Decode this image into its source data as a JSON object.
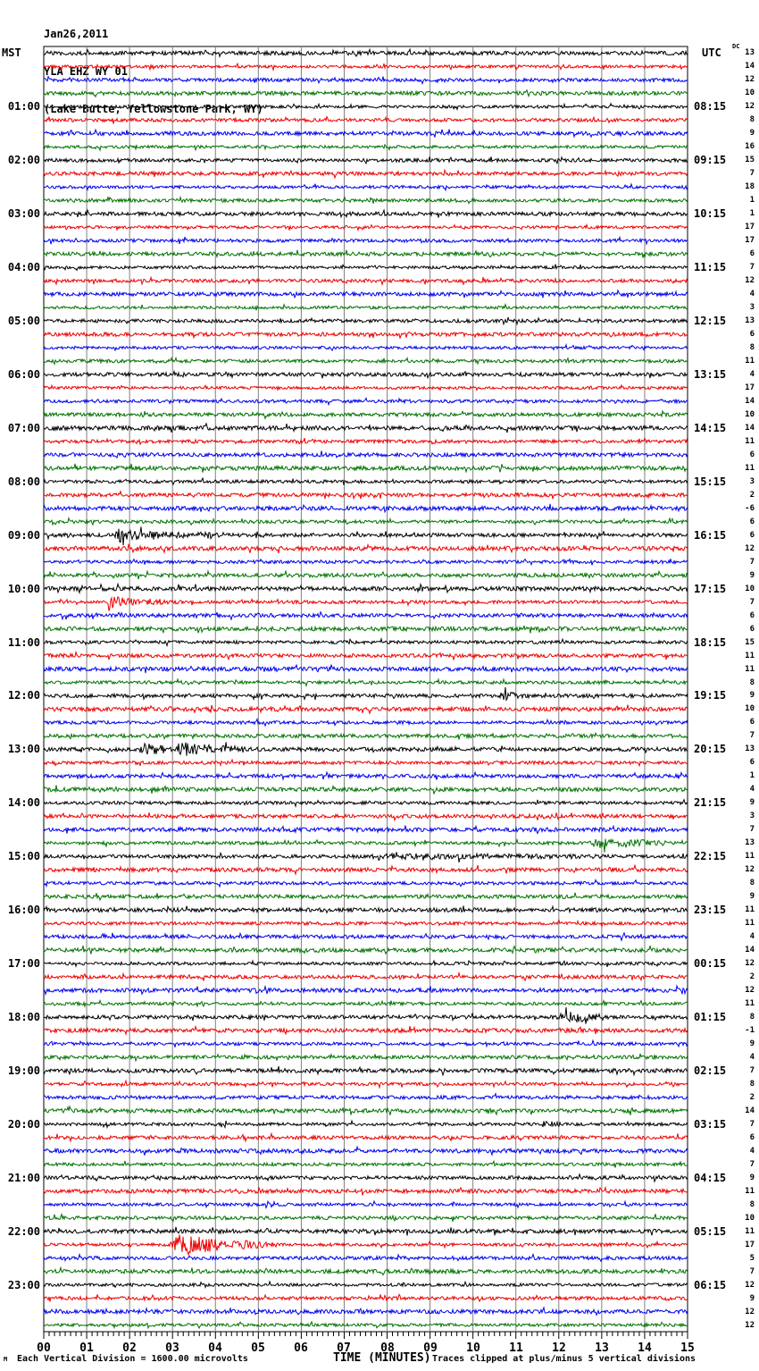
{
  "header": {
    "date": "Jan26,2011",
    "station": "YLA EHZ WY 01",
    "location": "(Lake Butte, Yellowstone Park, WY)"
  },
  "labels": {
    "left_timezone": "MST",
    "right_timezone": "UTC",
    "dc": "DC"
  },
  "footer": {
    "corner_glyph": "M",
    "scale_note": "Each Vertical Division = 1600.00 microvolts",
    "xlabel": "TIME (MINUTES)",
    "clip_note": "Traces clipped at plus/minus 5 vertical divisions"
  },
  "chart_data": {
    "type": "line",
    "title": "YLA EHZ WY 01 (Lake Butte, Yellowstone Park, WY) helicorder Jan26,2011",
    "xlabel": "TIME (MINUTES)",
    "x_range": [
      0,
      15
    ],
    "minutes_per_line": 15,
    "minute_labels": [
      "00",
      "01",
      "02",
      "03",
      "04",
      "05",
      "06",
      "07",
      "08",
      "09",
      "10",
      "11",
      "12",
      "13",
      "14",
      "15"
    ],
    "grid": "vertical-minute-lines",
    "colors": {
      "k": "#000000",
      "r": "#ee0000",
      "b": "#0000ee",
      "g": "#007200",
      "grid": "#808080",
      "frame": "#000000"
    },
    "traces": [
      {
        "color": "k",
        "val": 13
      },
      {
        "color": "r",
        "val": 14
      },
      {
        "color": "b",
        "val": 12
      },
      {
        "color": "g",
        "val": 10
      },
      {
        "color": "k",
        "val": 12,
        "left": "01:00",
        "right": "08:15"
      },
      {
        "color": "r",
        "val": 8
      },
      {
        "color": "b",
        "val": 9
      },
      {
        "color": "g",
        "val": 16
      },
      {
        "color": "k",
        "val": 15,
        "left": "02:00",
        "right": "09:15"
      },
      {
        "color": "r",
        "val": 7
      },
      {
        "color": "b",
        "val": 18
      },
      {
        "color": "g",
        "val": 1
      },
      {
        "color": "k",
        "val": 1,
        "left": "03:00",
        "right": "10:15"
      },
      {
        "color": "r",
        "val": 17
      },
      {
        "color": "b",
        "val": 17
      },
      {
        "color": "g",
        "val": 6
      },
      {
        "color": "k",
        "val": 7,
        "left": "04:00",
        "right": "11:15"
      },
      {
        "color": "r",
        "val": 12
      },
      {
        "color": "b",
        "val": 4
      },
      {
        "color": "g",
        "val": 3
      },
      {
        "color": "k",
        "val": 13,
        "left": "05:00",
        "right": "12:15"
      },
      {
        "color": "r",
        "val": 6
      },
      {
        "color": "b",
        "val": 8
      },
      {
        "color": "g",
        "val": 11
      },
      {
        "color": "k",
        "val": 4,
        "left": "06:00",
        "right": "13:15"
      },
      {
        "color": "r",
        "val": 17
      },
      {
        "color": "b",
        "val": 14
      },
      {
        "color": "g",
        "val": 10
      },
      {
        "color": "k",
        "val": 14,
        "left": "07:00",
        "right": "14:15"
      },
      {
        "color": "r",
        "val": 11
      },
      {
        "color": "b",
        "val": 6
      },
      {
        "color": "g",
        "val": 11
      },
      {
        "color": "k",
        "val": 3,
        "left": "08:00",
        "right": "15:15"
      },
      {
        "color": "r",
        "val": 2
      },
      {
        "color": "b",
        "val": -6
      },
      {
        "color": "g",
        "val": 6
      },
      {
        "color": "k",
        "val": 6,
        "left": "09:00",
        "right": "16:15",
        "events": [
          [
            1.65,
            2.4,
            4.2
          ],
          [
            2.4,
            3.35,
            2.0
          ],
          [
            3.55,
            4.25,
            1.7
          ],
          [
            4.9,
            5.35,
            1.3
          ]
        ]
      },
      {
        "color": "r",
        "val": 12
      },
      {
        "color": "b",
        "val": 7
      },
      {
        "color": "g",
        "val": 9
      },
      {
        "color": "k",
        "val": 10,
        "left": "10:00",
        "right": "17:15"
      },
      {
        "color": "r",
        "val": 7,
        "events": [
          [
            1.45,
            2.15,
            4.2
          ],
          [
            2.15,
            3.2,
            1.6
          ]
        ]
      },
      {
        "color": "b",
        "val": 6
      },
      {
        "color": "g",
        "val": 6
      },
      {
        "color": "k",
        "val": 15,
        "left": "11:00",
        "right": "18:15"
      },
      {
        "color": "r",
        "val": 11
      },
      {
        "color": "b",
        "val": 11
      },
      {
        "color": "g",
        "val": 8
      },
      {
        "color": "k",
        "val": 9,
        "left": "12:00",
        "right": "19:15",
        "events": [
          [
            10.6,
            11.3,
            2.0
          ]
        ]
      },
      {
        "color": "r",
        "val": 10
      },
      {
        "color": "b",
        "val": 6
      },
      {
        "color": "g",
        "val": 7
      },
      {
        "color": "k",
        "val": 13,
        "left": "13:00",
        "right": "20:15",
        "events": [
          [
            2.2,
            3.0,
            3.2
          ],
          [
            3.05,
            4.1,
            3.8
          ],
          [
            4.1,
            4.7,
            1.6
          ]
        ]
      },
      {
        "color": "r",
        "val": 6
      },
      {
        "color": "b",
        "val": 1
      },
      {
        "color": "g",
        "val": 4
      },
      {
        "color": "k",
        "val": 9,
        "left": "14:00",
        "right": "21:15"
      },
      {
        "color": "r",
        "val": 3
      },
      {
        "color": "b",
        "val": 7
      },
      {
        "color": "g",
        "val": 13,
        "events": [
          [
            12.7,
            14.5,
            2.6
          ]
        ]
      },
      {
        "color": "k",
        "val": 11,
        "left": "15:00",
        "right": "22:15",
        "events": [
          [
            7.5,
            13.0,
            0.9
          ]
        ]
      },
      {
        "color": "r",
        "val": 12
      },
      {
        "color": "b",
        "val": 8
      },
      {
        "color": "g",
        "val": 9
      },
      {
        "color": "k",
        "val": 11,
        "left": "16:00",
        "right": "23:15"
      },
      {
        "color": "r",
        "val": 11
      },
      {
        "color": "b",
        "val": 4
      },
      {
        "color": "g",
        "val": 14
      },
      {
        "color": "k",
        "val": 12,
        "left": "17:00",
        "right": "00:15"
      },
      {
        "color": "r",
        "val": 2
      },
      {
        "color": "b",
        "val": 12
      },
      {
        "color": "g",
        "val": 11
      },
      {
        "color": "k",
        "val": 8,
        "left": "18:00",
        "right": "01:15",
        "events": [
          [
            11.95,
            13.05,
            3.2
          ]
        ]
      },
      {
        "color": "r",
        "val": -1
      },
      {
        "color": "b",
        "val": 9
      },
      {
        "color": "g",
        "val": 4
      },
      {
        "color": "k",
        "val": 7,
        "left": "19:00",
        "right": "02:15"
      },
      {
        "color": "r",
        "val": 8
      },
      {
        "color": "b",
        "val": 2
      },
      {
        "color": "g",
        "val": 14
      },
      {
        "color": "k",
        "val": 7,
        "left": "20:00",
        "right": "03:15",
        "events": [
          [
            11.55,
            12.05,
            1.8
          ]
        ]
      },
      {
        "color": "r",
        "val": 6
      },
      {
        "color": "b",
        "val": 4
      },
      {
        "color": "g",
        "val": 7
      },
      {
        "color": "k",
        "val": 9,
        "left": "21:00",
        "right": "04:15"
      },
      {
        "color": "r",
        "val": 11
      },
      {
        "color": "b",
        "val": 8
      },
      {
        "color": "g",
        "val": 10
      },
      {
        "color": "k",
        "val": 11,
        "left": "22:00",
        "right": "05:15"
      },
      {
        "color": "r",
        "val": 17,
        "events": [
          [
            2.95,
            4.55,
            7.0
          ],
          [
            4.55,
            5.45,
            2.0
          ]
        ]
      },
      {
        "color": "b",
        "val": 5
      },
      {
        "color": "g",
        "val": 7
      },
      {
        "color": "k",
        "val": 12,
        "left": "23:00",
        "right": "06:15"
      },
      {
        "color": "r",
        "val": 9
      },
      {
        "color": "b",
        "val": 12
      },
      {
        "color": "g",
        "val": 12
      }
    ]
  }
}
